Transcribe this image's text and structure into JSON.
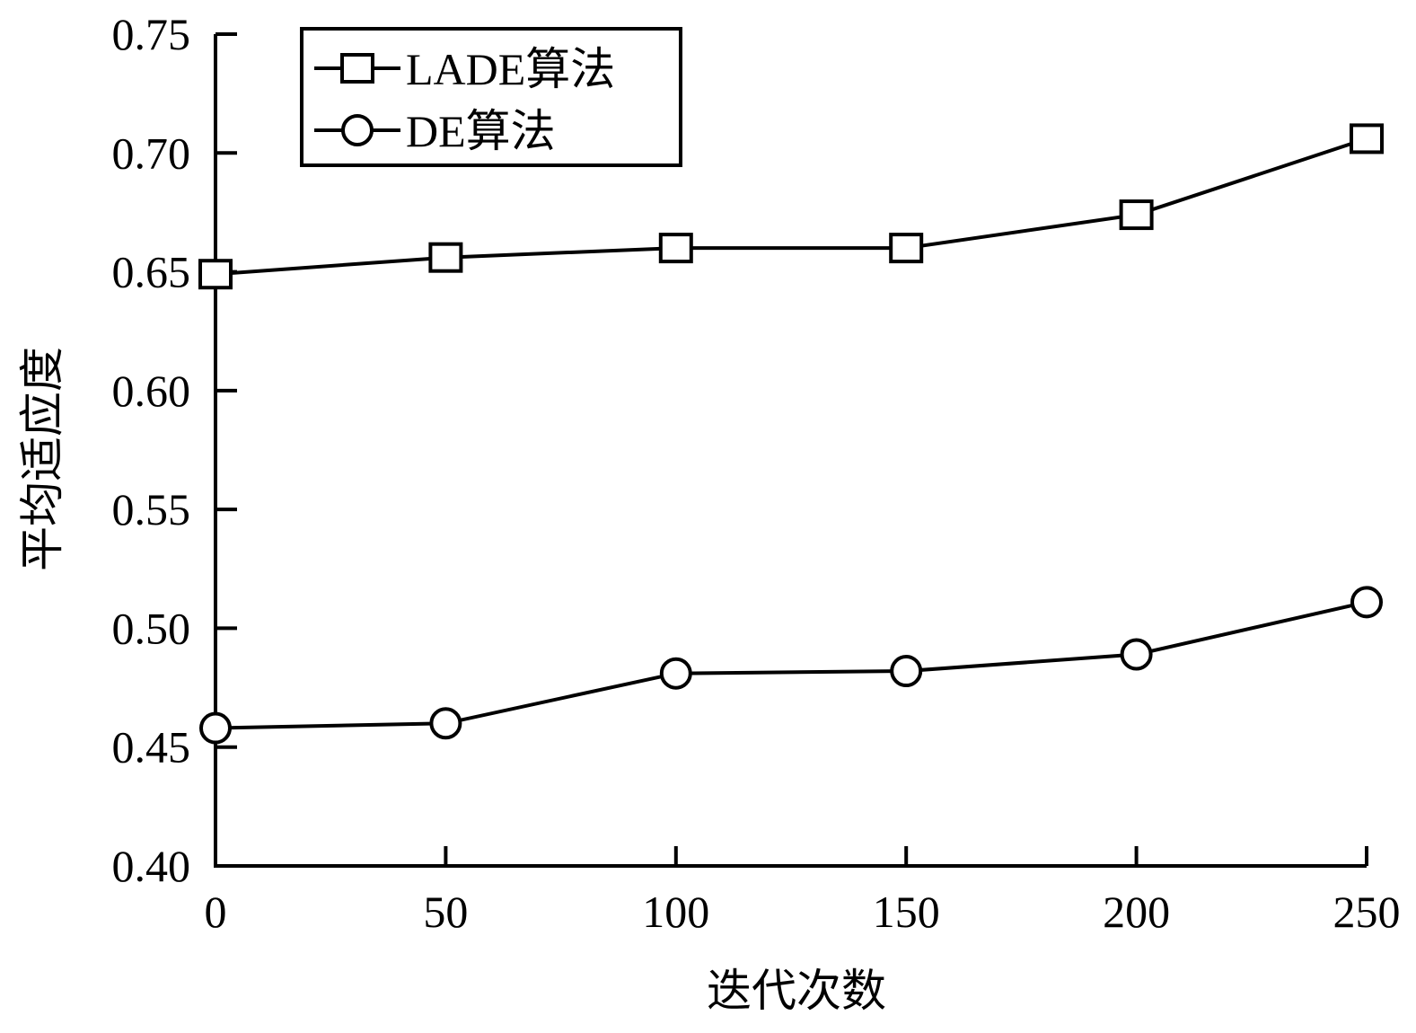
{
  "chart_data": {
    "type": "line",
    "title": "",
    "xlabel": "迭代次数",
    "ylabel": "平均适应度",
    "x": [
      0,
      50,
      100,
      150,
      200,
      250
    ],
    "x_ticks": [
      "0",
      "50",
      "100",
      "150",
      "200",
      "250"
    ],
    "xlim": [
      0,
      250
    ],
    "y_ticks": [
      "0.40",
      "0.45",
      "0.50",
      "0.55",
      "0.60",
      "0.65",
      "0.70",
      "0.75"
    ],
    "ylim": [
      0.4,
      0.75
    ],
    "grid": false,
    "legend_position": "top-left",
    "series": [
      {
        "name": "LADE算法",
        "marker": "square",
        "color": "#000000",
        "values": [
          0.649,
          0.656,
          0.66,
          0.66,
          0.674,
          0.706
        ]
      },
      {
        "name": "DE算法",
        "marker": "circle",
        "color": "#000000",
        "values": [
          0.458,
          0.46,
          0.481,
          0.482,
          0.489,
          0.511
        ]
      }
    ]
  }
}
